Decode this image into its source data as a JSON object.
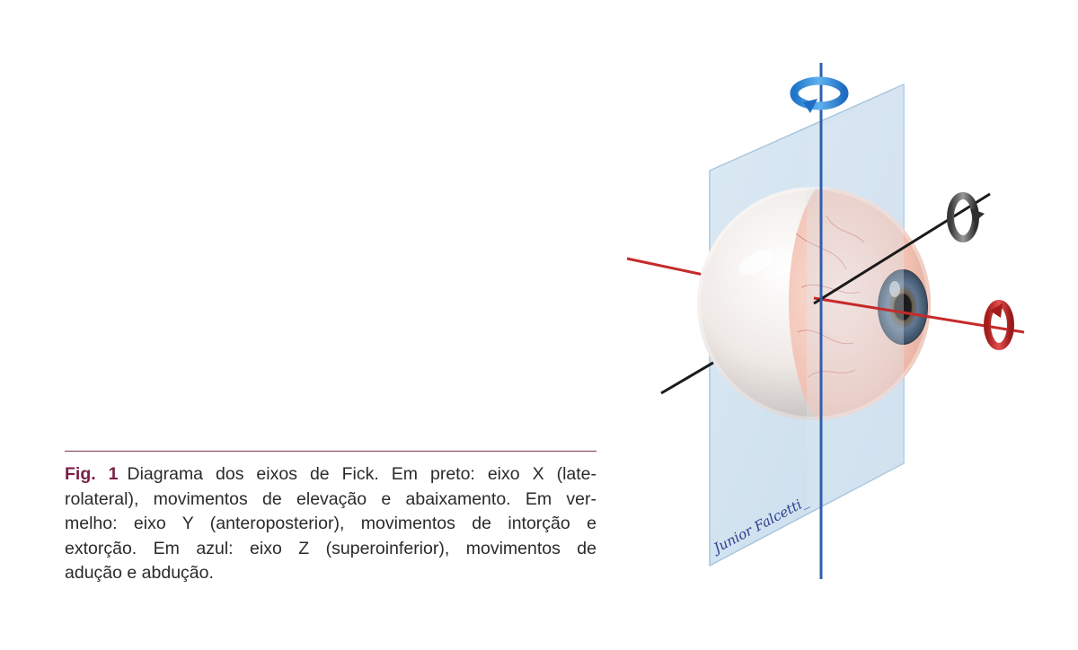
{
  "caption": {
    "label": "Fig. 1",
    "lines": [
      "Diagrama dos eixos de Fick. Em preto: eixo X  (late-",
      "rolateral),  movimentos de elevação e abaixamento. Em ver-",
      "melho: eixo Y  (anteroposterior), movimentos de intorção e",
      "extorção. Em azul: eixo Z (superoinferior), movimentos de",
      "adução e abdução."
    ]
  },
  "figure": {
    "signature": "Junior Falcetti_",
    "axes": [
      {
        "axis": "X",
        "color": "#1a1a1a",
        "rotation_icon": "rotation-arrow-icon"
      },
      {
        "axis": "Y",
        "color": "#c62a2a",
        "rotation_icon": "rotation-arrow-icon"
      },
      {
        "axis": "Z",
        "color": "#2f5fb0",
        "rotation_icon": "rotation-arrow-icon"
      }
    ],
    "colors": {
      "plane": "#cfe0ee",
      "iris": "#4f6b86",
      "sclera": "#f2ece8",
      "accent": "#7a1f45"
    }
  }
}
